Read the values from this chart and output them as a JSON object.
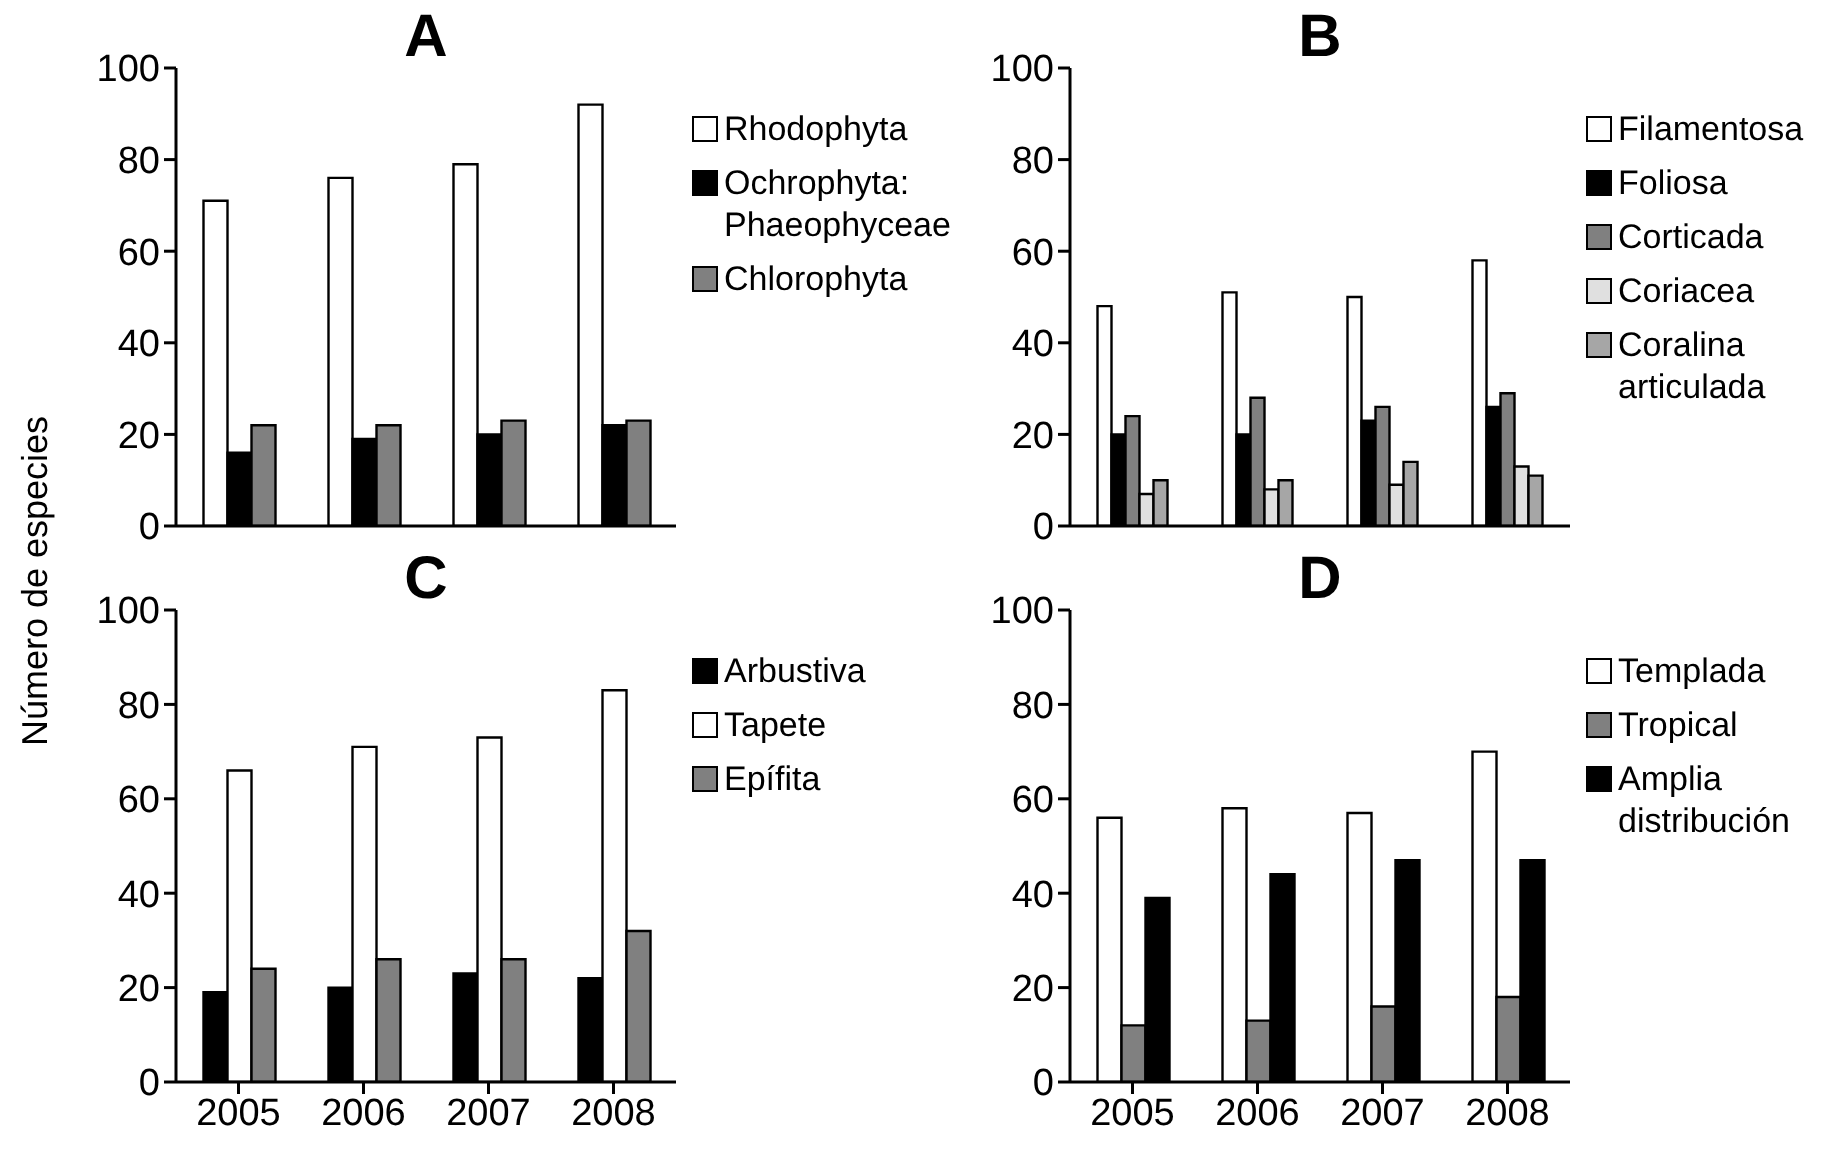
{
  "chart_data": [
    {
      "type": "bar",
      "title": "A",
      "ylabel": "Número de especies",
      "categories": [
        "2005",
        "2006",
        "2007",
        "2008"
      ],
      "ylim": [
        0,
        100
      ],
      "yticks": [
        0,
        20,
        40,
        60,
        80,
        100
      ],
      "legend": "right",
      "tick_labels": "y",
      "series": [
        {
          "name": "Rhodophyta",
          "color": "#ffffff",
          "values": [
            71,
            76,
            79,
            92
          ]
        },
        {
          "name": "Ochrophyta: Phaeophyceae",
          "color": "#000000",
          "values": [
            16,
            19,
            20,
            22
          ]
        },
        {
          "name": "Chlorophyta",
          "color": "#808080",
          "values": [
            22,
            22,
            23,
            23
          ]
        }
      ]
    },
    {
      "type": "bar",
      "title": "B",
      "categories": [
        "2005",
        "2006",
        "2007",
        "2008"
      ],
      "ylim": [
        0,
        100
      ],
      "yticks": [
        0,
        20,
        40,
        60,
        80,
        100
      ],
      "legend": "right",
      "tick_labels": "y",
      "series": [
        {
          "name": "Filamentosa",
          "color": "#ffffff",
          "values": [
            48,
            51,
            50,
            58
          ]
        },
        {
          "name": "Foliosa",
          "color": "#000000",
          "values": [
            20,
            20,
            23,
            26
          ]
        },
        {
          "name": "Corticada",
          "color": "#808080",
          "values": [
            24,
            28,
            26,
            29
          ]
        },
        {
          "name": "Coriacea",
          "color": "#e0e0e0",
          "values": [
            7,
            8,
            9,
            13
          ]
        },
        {
          "name": "Coralina articulada",
          "color": "#a6a6a6",
          "values": [
            10,
            10,
            14,
            11
          ]
        }
      ]
    },
    {
      "type": "bar",
      "title": "C",
      "categories": [
        "2005",
        "2006",
        "2007",
        "2008"
      ],
      "ylim": [
        0,
        100
      ],
      "yticks": [
        0,
        20,
        40,
        60,
        80,
        100
      ],
      "legend": "right",
      "series": [
        {
          "name": "Arbustiva",
          "color": "#000000",
          "values": [
            19,
            20,
            23,
            22
          ]
        },
        {
          "name": "Tapete",
          "color": "#ffffff",
          "values": [
            66,
            71,
            73,
            83
          ]
        },
        {
          "name": "Epífita",
          "color": "#808080",
          "values": [
            24,
            26,
            26,
            32
          ]
        }
      ]
    },
    {
      "type": "bar",
      "title": "D",
      "categories": [
        "2005",
        "2006",
        "2007",
        "2008"
      ],
      "ylim": [
        0,
        100
      ],
      "yticks": [
        0,
        20,
        40,
        60,
        80,
        100
      ],
      "legend": "right",
      "series": [
        {
          "name": "Templada",
          "color": "#ffffff",
          "values": [
            56,
            58,
            57,
            70
          ]
        },
        {
          "name": "Tropical",
          "color": "#808080",
          "values": [
            12,
            13,
            16,
            18
          ]
        },
        {
          "name": "Amplia distribución",
          "color": "#000000",
          "values": [
            39,
            44,
            47,
            47
          ]
        }
      ]
    }
  ]
}
